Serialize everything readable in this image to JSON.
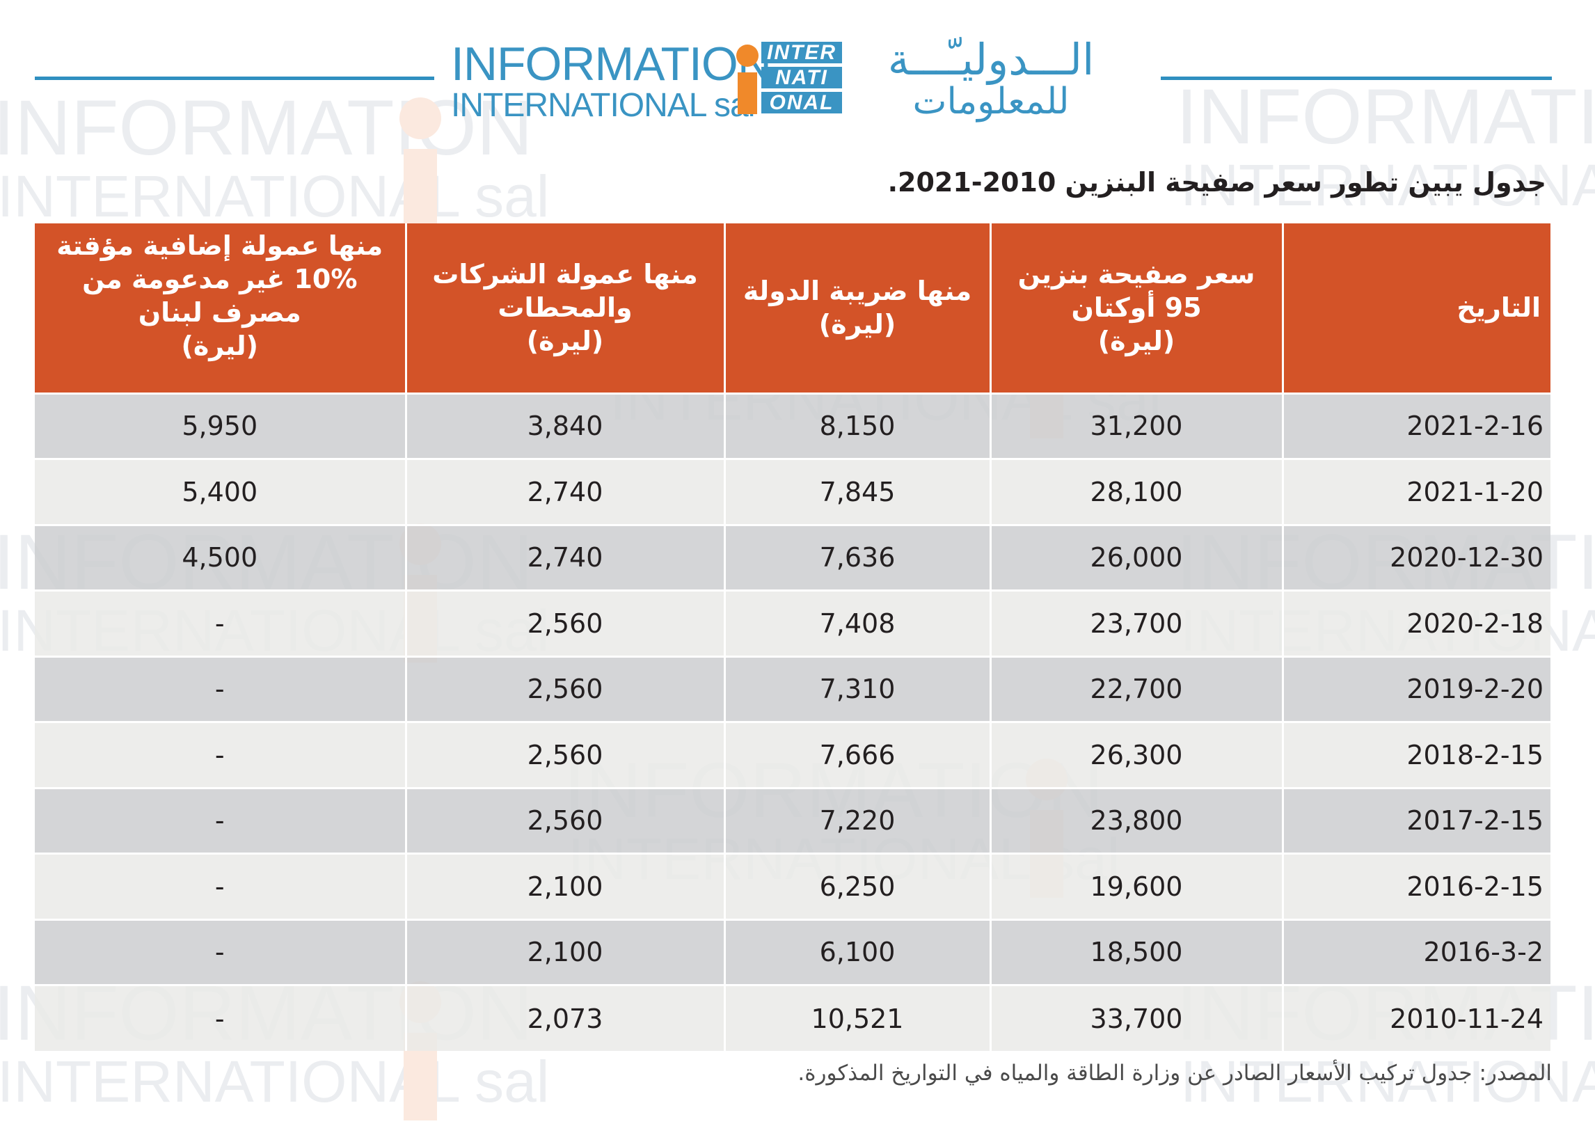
{
  "brand": {
    "en_line1": "INFORMATION",
    "en_line2": "INTERNATIONAL sal",
    "mark_line1": "INTER",
    "mark_line2": "NATI",
    "mark_line3": "ONAL",
    "ar_line1": "الـــدوليـّـــة",
    "ar_line2": "للمعلومات",
    "colors": {
      "blue": "#3a94c3",
      "orange": "#f0892a",
      "header_red": "#d35328"
    }
  },
  "title": "جدول يبين تطور سعر صفيحة البنزين 2010-2021.",
  "table": {
    "headers": {
      "date": {
        "line1": "التاريخ"
      },
      "price": {
        "line1": "سعر صفيحة بنزين",
        "line2": "95 أوكتان",
        "line3": "(ليرة)"
      },
      "tax": {
        "line1": "منها ضريبة الدولة",
        "line2": "(ليرة)"
      },
      "companies": {
        "line1": "منها عمولة الشركات",
        "line2": "والمحطات",
        "line3": "(ليرة)"
      },
      "temp": {
        "line1": "منها عمولة إضافية مؤقتة",
        "line2": "10% غير مدعومة من",
        "line3": "مصرف لبنان",
        "line4": "(ليرة)"
      }
    },
    "rows": [
      {
        "date": "2021-2-16",
        "price": "31,200",
        "tax": "8,150",
        "companies": "3,840",
        "temp": "5,950"
      },
      {
        "date": "2021-1-20",
        "price": "28,100",
        "tax": "7,845",
        "companies": "2,740",
        "temp": "5,400"
      },
      {
        "date": "2020-12-30",
        "price": "26,000",
        "tax": "7,636",
        "companies": "2,740",
        "temp": "4,500"
      },
      {
        "date": "2020-2-18",
        "price": "23,700",
        "tax": "7,408",
        "companies": "2,560",
        "temp": "-"
      },
      {
        "date": "2019-2-20",
        "price": "22,700",
        "tax": "7,310",
        "companies": "2,560",
        "temp": "-"
      },
      {
        "date": "2018-2-15",
        "price": "26,300",
        "tax": "7,666",
        "companies": "2,560",
        "temp": "-"
      },
      {
        "date": "2017-2-15",
        "price": "23,800",
        "tax": "7,220",
        "companies": "2,560",
        "temp": "-"
      },
      {
        "date": "2016-2-15",
        "price": "19,600",
        "tax": "6,250",
        "companies": "2,100",
        "temp": "-"
      },
      {
        "date": "2016-3-2",
        "price": "18,500",
        "tax": "6,100",
        "companies": "2,100",
        "temp": "-"
      },
      {
        "date": "2010-11-24",
        "price": "33,700",
        "tax": "10,521",
        "companies": "2,073",
        "temp": "-"
      }
    ]
  },
  "source": "المصدر: جدول تركيب الأسعار الصادر عن وزارة الطاقة والمياه في التواريخ المذكورة."
}
